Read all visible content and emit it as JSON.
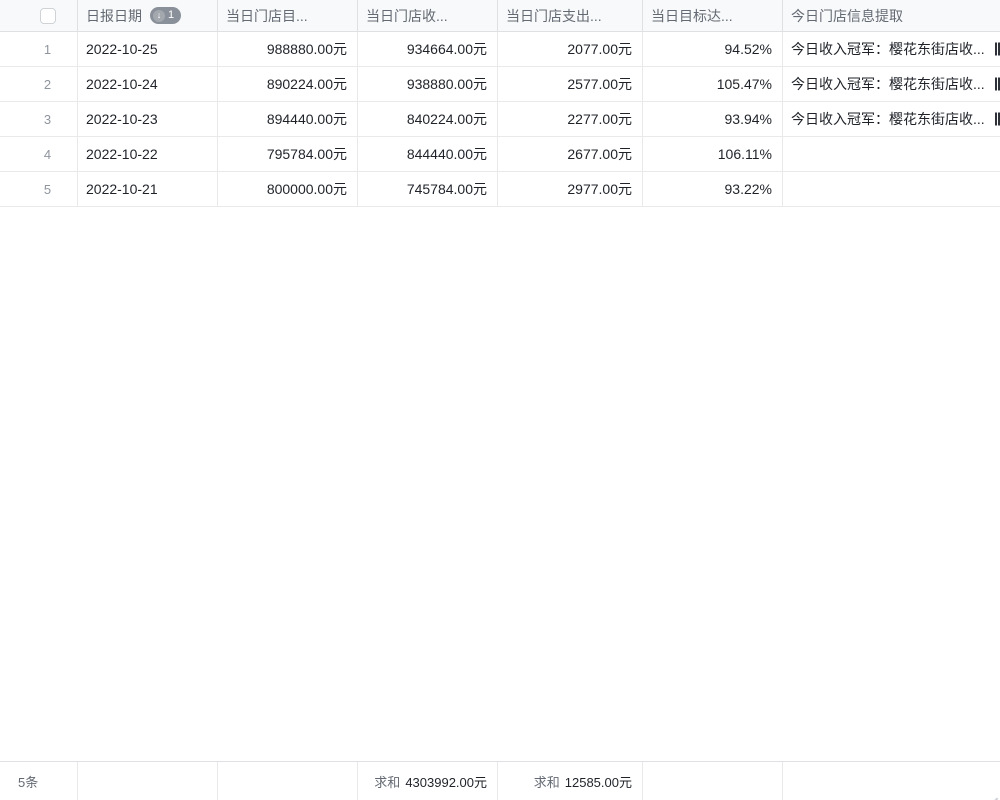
{
  "table": {
    "header": {
      "columns": {
        "date": {
          "label": "日报日期",
          "sort_arrow": "↓",
          "sort_order": "1"
        },
        "target": {
          "label": "当日门店目..."
        },
        "income": {
          "label": "当日门店收..."
        },
        "expense": {
          "label": "当日门店支出..."
        },
        "rate": {
          "label": "当日目标达..."
        },
        "info": {
          "label": "今日门店信息提取"
        }
      }
    },
    "rows": [
      {
        "index": "1",
        "date": "2022-10-25",
        "target": "988880.00元",
        "income": "934664.00元",
        "expense": "2077.00元",
        "rate": "94.52%",
        "info": "今日收入冠军：樱花东街店收..."
      },
      {
        "index": "2",
        "date": "2022-10-24",
        "target": "890224.00元",
        "income": "938880.00元",
        "expense": "2577.00元",
        "rate": "105.47%",
        "info": "今日收入冠军：樱花东街店收..."
      },
      {
        "index": "3",
        "date": "2022-10-23",
        "target": "894440.00元",
        "income": "840224.00元",
        "expense": "2277.00元",
        "rate": "93.94%",
        "info": "今日收入冠军：樱花东街店收..."
      },
      {
        "index": "4",
        "date": "2022-10-22",
        "target": "795784.00元",
        "income": "844440.00元",
        "expense": "2677.00元",
        "rate": "106.11%",
        "info": ""
      },
      {
        "index": "5",
        "date": "2022-10-21",
        "target": "800000.00元",
        "income": "745784.00元",
        "expense": "2977.00元",
        "rate": "93.22%",
        "info": ""
      }
    ],
    "footer": {
      "record_count": "5条",
      "income_sum_label": "求和",
      "income_sum_value": "4303992.00元",
      "expense_sum_label": "求和",
      "expense_sum_value": "12585.00元"
    }
  },
  "colors": {
    "border": "#dee0e3",
    "border_light": "#e7e9eb",
    "header_bg": "#f8f9fa",
    "text_primary": "#1f2329",
    "text_secondary": "#646a73",
    "text_muted": "#8f959e",
    "badge_bg": "#8a9099",
    "badge_text": "#ffffff"
  }
}
